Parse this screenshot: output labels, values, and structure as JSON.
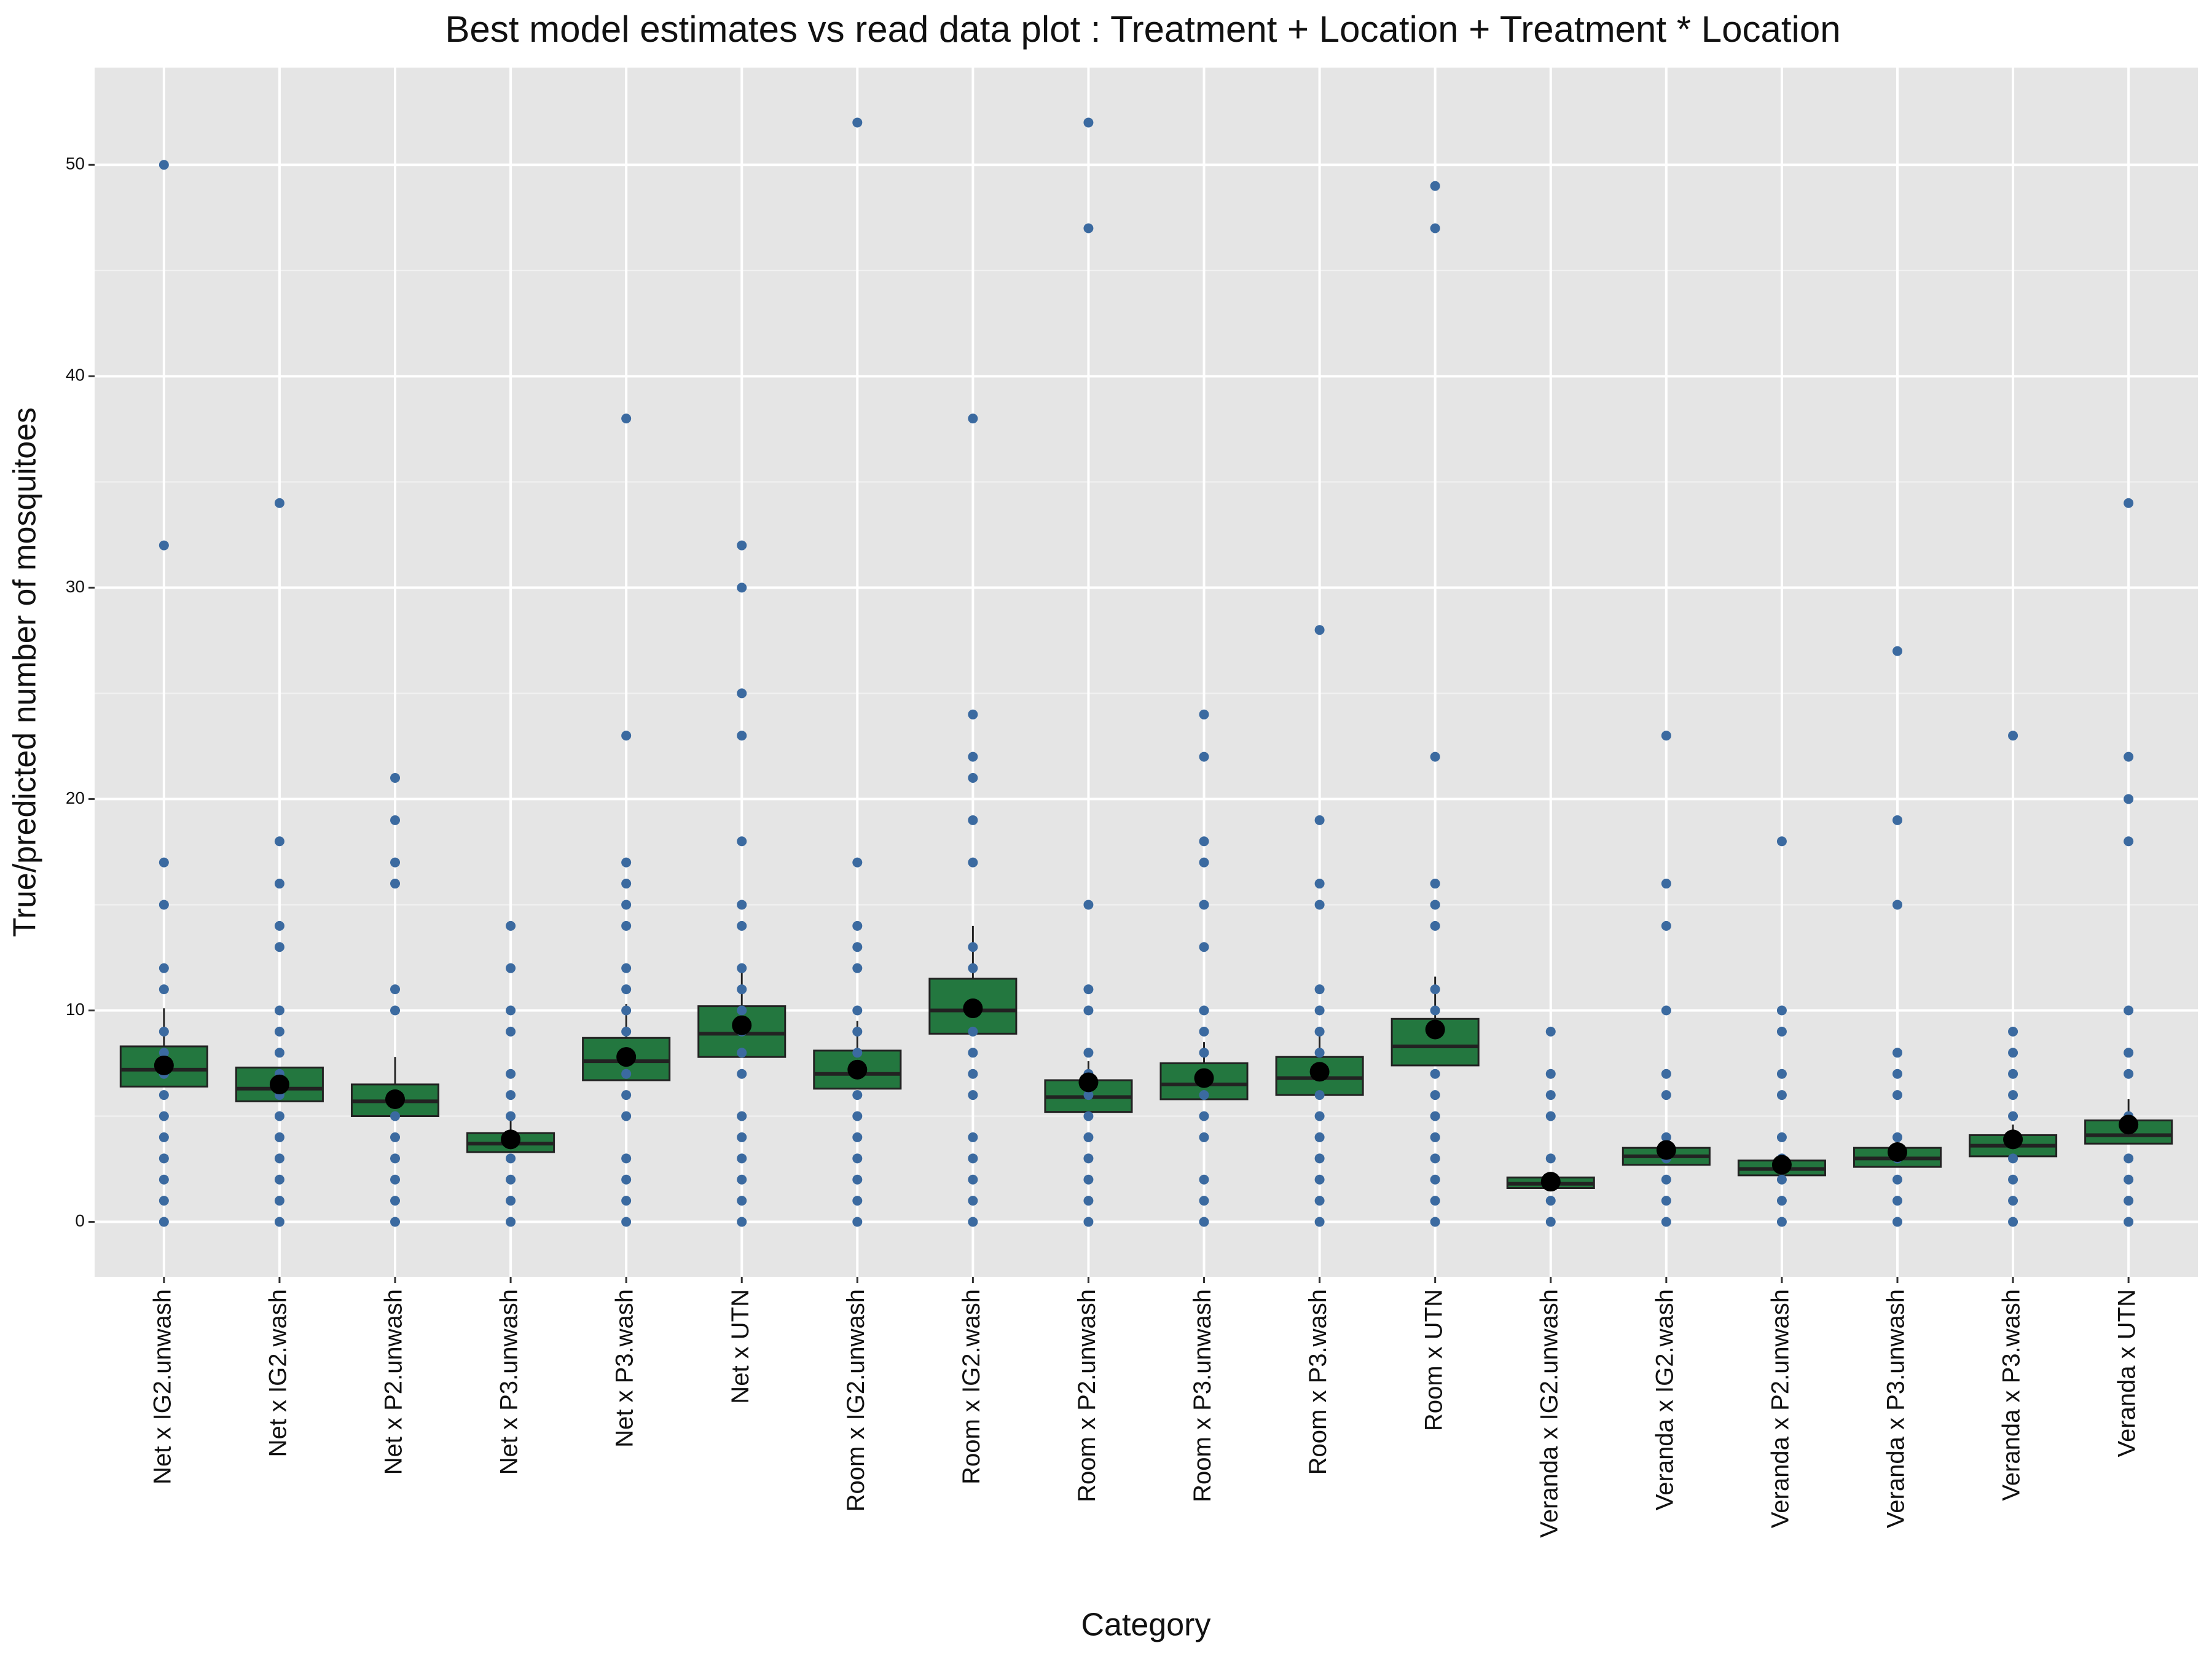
{
  "chart_data": {
    "type": "box",
    "title": "Best model estimates vs read data plot : Treatment + Location + Treatment * Location",
    "x_label": "Category",
    "y_label": "True/predicted number of mosquitoes",
    "categories": [
      "Net x IG2.unwash",
      "Net x IG2.wash",
      "Net x P2.unwash",
      "Net x P3.unwash",
      "Net x P3.wash",
      "Net x UTN",
      "Room x IG2.unwash",
      "Room x IG2.wash",
      "Room x P2.unwash",
      "Room x P3.unwash",
      "Room x P3.wash",
      "Room x UTN",
      "Veranda x IG2.unwash",
      "Veranda x IG2.wash",
      "Veranda x P2.unwash",
      "Veranda x P3.unwash",
      "Veranda x P3.wash",
      "Veranda x UTN"
    ],
    "q1": [
      6.4,
      5.7,
      5.0,
      3.3,
      6.7,
      7.8,
      6.3,
      8.9,
      5.2,
      5.8,
      6.0,
      7.4,
      1.6,
      2.7,
      2.2,
      2.6,
      3.1,
      3.7
    ],
    "median": [
      7.2,
      6.3,
      5.7,
      3.7,
      7.6,
      8.9,
      7.0,
      10.0,
      5.9,
      6.5,
      6.8,
      8.3,
      1.8,
      3.1,
      2.5,
      3.0,
      3.6,
      4.1
    ],
    "q3": [
      8.3,
      7.3,
      6.5,
      4.2,
      8.7,
      10.2,
      8.1,
      11.5,
      6.7,
      7.5,
      7.8,
      9.6,
      2.1,
      3.5,
      2.9,
      3.5,
      4.1,
      4.8
    ],
    "upper_whisker": [
      10.1,
      7.3,
      7.8,
      5.0,
      10.3,
      12.2,
      9.5,
      14.0,
      7.6,
      8.5,
      8.8,
      11.6,
      2.3,
      4.0,
      3.2,
      4.0,
      4.6,
      5.8
    ],
    "estimate": [
      7.4,
      6.5,
      5.8,
      3.9,
      7.8,
      9.3,
      7.2,
      10.1,
      6.6,
      6.8,
      7.1,
      9.1,
      1.9,
      3.4,
      2.7,
      3.3,
      3.9,
      4.6
    ],
    "points": [
      [
        0,
        1,
        2,
        3,
        4,
        5,
        6,
        7,
        8,
        9,
        11,
        12,
        15,
        17,
        32,
        50
      ],
      [
        0,
        1,
        2,
        3,
        4,
        5,
        6,
        7,
        8,
        9,
        10,
        13,
        14,
        16,
        18,
        34
      ],
      [
        0,
        1,
        2,
        3,
        4,
        5,
        6,
        10,
        11,
        16,
        17,
        19,
        21
      ],
      [
        0,
        1,
        2,
        3,
        4,
        5,
        6,
        7,
        9,
        10,
        12,
        14
      ],
      [
        0,
        1,
        2,
        3,
        5,
        6,
        7,
        8,
        9,
        10,
        11,
        12,
        14,
        15,
        16,
        17,
        23,
        38
      ],
      [
        0,
        1,
        2,
        3,
        4,
        5,
        7,
        8,
        9,
        10,
        11,
        12,
        14,
        15,
        18,
        23,
        25,
        30,
        32
      ],
      [
        0,
        1,
        2,
        3,
        4,
        5,
        6,
        8,
        9,
        10,
        12,
        13,
        14,
        17,
        52
      ],
      [
        0,
        1,
        2,
        3,
        4,
        6,
        7,
        8,
        9,
        10,
        12,
        13,
        17,
        19,
        21,
        22,
        24,
        38
      ],
      [
        0,
        1,
        2,
        3,
        4,
        5,
        6,
        7,
        8,
        10,
        11,
        15,
        47,
        52
      ],
      [
        0,
        1,
        2,
        4,
        5,
        6,
        7,
        8,
        9,
        10,
        13,
        15,
        17,
        18,
        22,
        24
      ],
      [
        0,
        1,
        2,
        3,
        4,
        5,
        6,
        7,
        8,
        9,
        10,
        11,
        15,
        16,
        19,
        28
      ],
      [
        0,
        1,
        2,
        3,
        4,
        5,
        6,
        7,
        9,
        10,
        11,
        14,
        15,
        16,
        22,
        47,
        49
      ],
      [
        0,
        1,
        2,
        3,
        5,
        6,
        7,
        9
      ],
      [
        0,
        1,
        2,
        3,
        4,
        6,
        7,
        10,
        14,
        16,
        23
      ],
      [
        0,
        1,
        2,
        3,
        4,
        6,
        7,
        9,
        10,
        18
      ],
      [
        0,
        1,
        2,
        3,
        4,
        6,
        7,
        8,
        15,
        19,
        27
      ],
      [
        0,
        1,
        2,
        3,
        4,
        5,
        6,
        7,
        8,
        9,
        23
      ],
      [
        0,
        1,
        2,
        3,
        5,
        7,
        8,
        10,
        18,
        20,
        22,
        34
      ]
    ],
    "ylim": [
      -2.6,
      54.6
    ],
    "yticks": [
      0,
      10,
      20,
      30,
      40,
      50
    ],
    "minor_yticks": [
      5,
      15,
      25,
      35,
      45
    ],
    "grid": true,
    "box_color": "#23773f",
    "point_color": "#3b6aa0",
    "estimate_color": "#000000"
  }
}
